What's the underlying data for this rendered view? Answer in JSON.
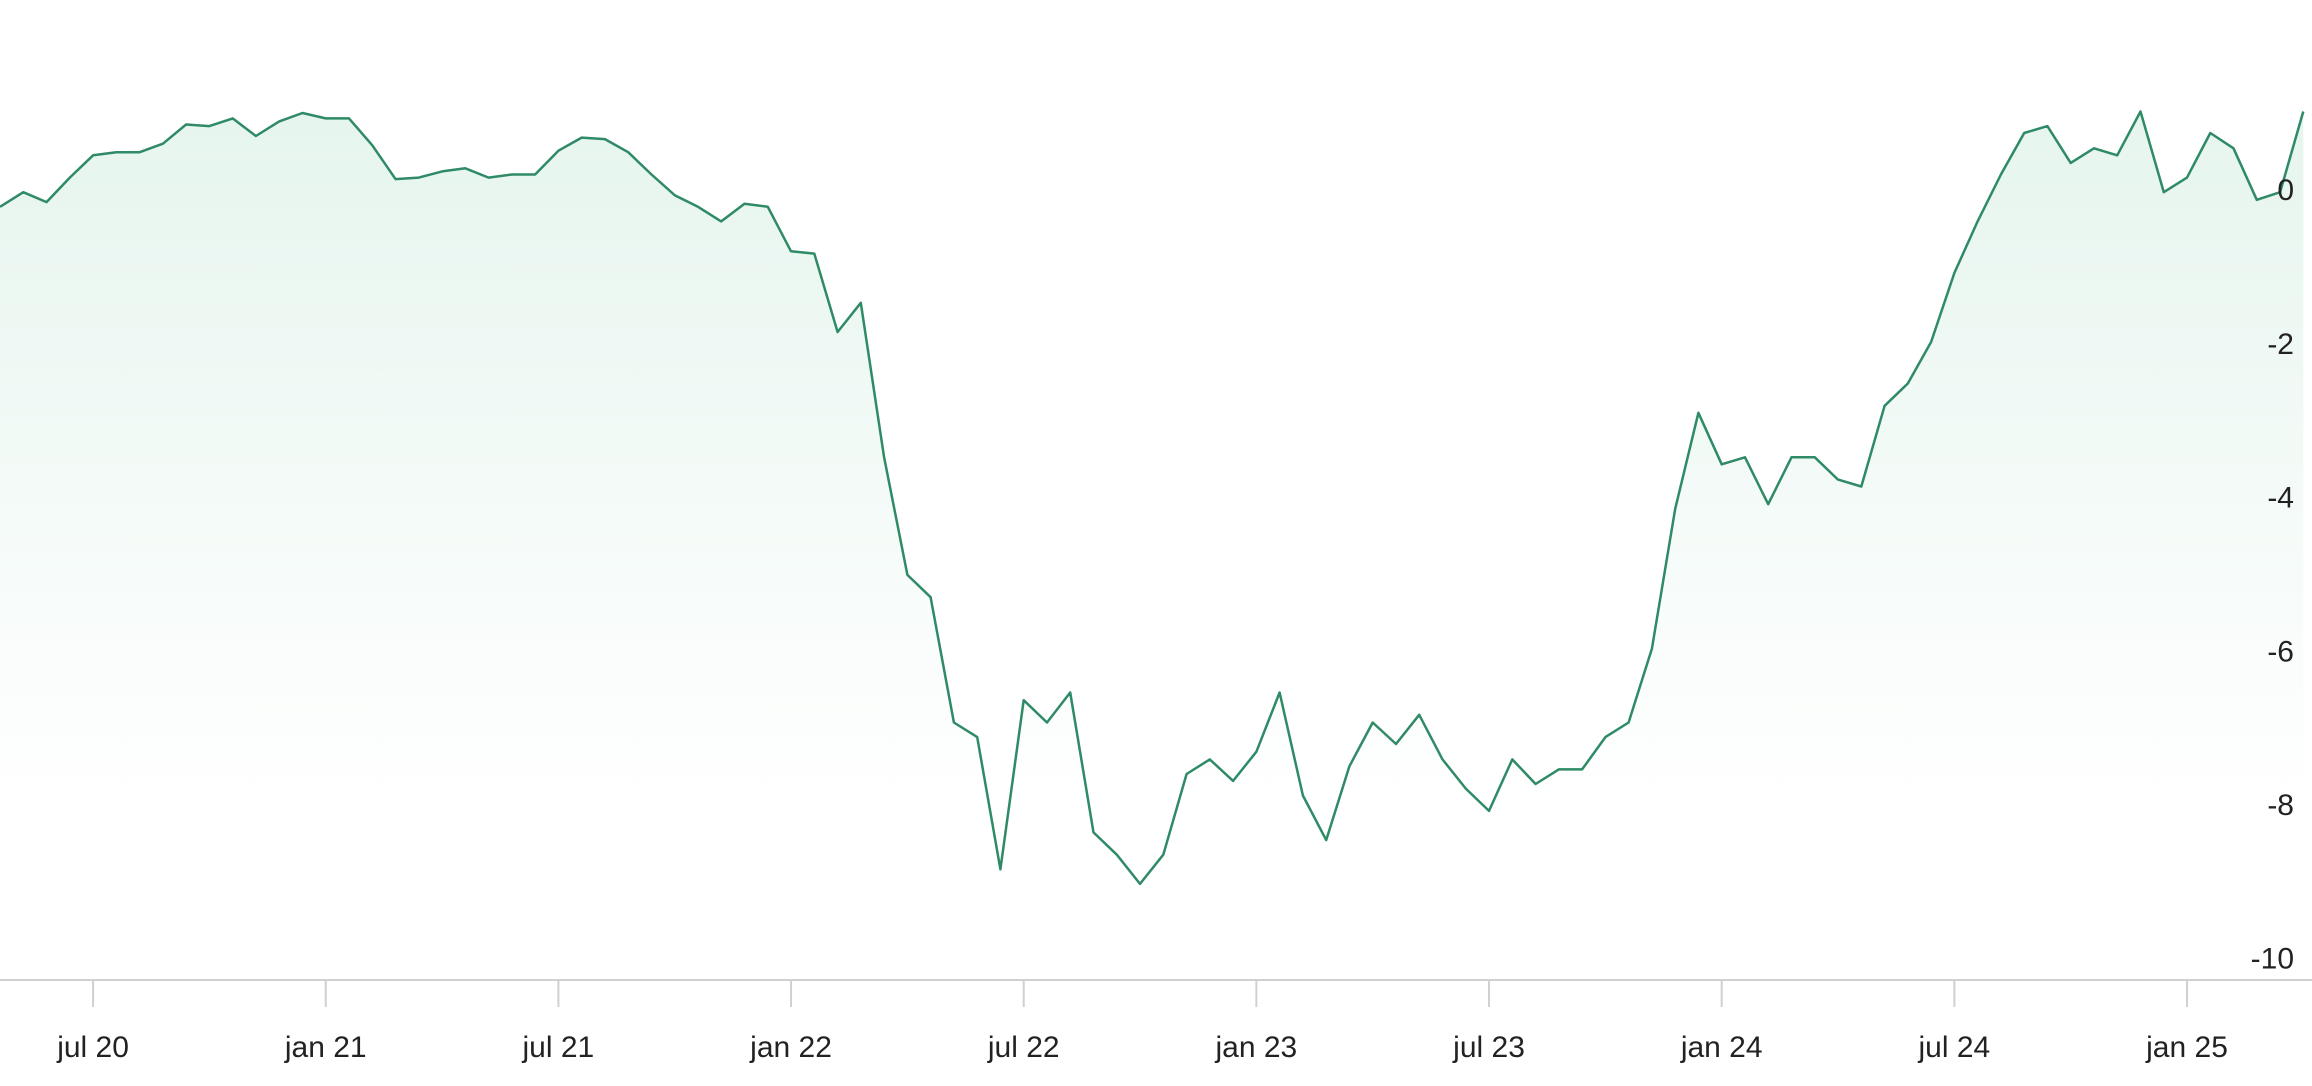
{
  "chart_data": {
    "type": "line",
    "x": [
      2020.3,
      2020.35,
      2020.4,
      2020.45,
      2020.5,
      2020.55,
      2020.6,
      2020.65,
      2020.7,
      2020.75,
      2020.8,
      2020.85,
      2020.9,
      2020.95,
      2021.0,
      2021.05,
      2021.1,
      2021.15,
      2021.2,
      2021.25,
      2021.3,
      2021.35,
      2021.4,
      2021.45,
      2021.5,
      2021.55,
      2021.6,
      2021.65,
      2021.7,
      2021.75,
      2021.8,
      2021.85,
      2021.9,
      2021.95,
      2022.0,
      2022.05,
      2022.1,
      2022.15,
      2022.2,
      2022.25,
      2022.3,
      2022.35,
      2022.4,
      2022.45,
      2022.5,
      2022.55,
      2022.6,
      2022.65,
      2022.7,
      2022.75,
      2022.8,
      2022.85,
      2022.9,
      2022.95,
      2023.0,
      2023.05,
      2023.1,
      2023.15,
      2023.2,
      2023.25,
      2023.3,
      2023.35,
      2023.4,
      2023.45,
      2023.5,
      2023.55,
      2023.6,
      2023.65,
      2023.7,
      2023.75,
      2023.8,
      2023.85,
      2023.9,
      2023.95,
      2024.0,
      2024.05,
      2024.1,
      2024.15,
      2024.2,
      2024.25,
      2024.3,
      2024.35,
      2024.4,
      2024.45,
      2024.5,
      2024.55,
      2024.6,
      2024.65,
      2024.7,
      2024.75,
      2024.8,
      2024.85,
      2024.9,
      2024.95,
      2025.0,
      2025.05,
      2025.1,
      2025.15,
      2025.2,
      2025.25
    ],
    "series": [
      {
        "color": "#2f8a66",
        "values": [
          -0.19,
          0.0,
          -0.13,
          0.19,
          0.48,
          0.52,
          0.52,
          0.63,
          0.88,
          0.86,
          0.96,
          0.73,
          0.92,
          1.03,
          0.96,
          0.96,
          0.61,
          0.17,
          0.19,
          0.27,
          0.31,
          0.19,
          0.23,
          0.23,
          0.54,
          0.71,
          0.69,
          0.52,
          0.23,
          -0.04,
          -0.19,
          -0.38,
          -0.15,
          -0.19,
          -0.77,
          -0.8,
          -1.82,
          -1.44,
          -3.45,
          -4.98,
          -5.27,
          -6.9,
          -7.09,
          -8.81,
          -6.61,
          -6.9,
          -6.51,
          -8.33,
          -8.62,
          -9.0,
          -8.62,
          -7.57,
          -7.38,
          -7.66,
          -7.28,
          -6.51,
          -7.85,
          -8.43,
          -7.47,
          -6.9,
          -7.18,
          -6.8,
          -7.38,
          -7.76,
          -8.05,
          -7.38,
          -7.7,
          -7.51,
          -7.51,
          -7.09,
          -6.9,
          -5.94,
          -4.12,
          -2.87,
          -3.54,
          -3.45,
          -4.06,
          -3.45,
          -3.45,
          -3.74,
          -3.83,
          -2.78,
          -2.49,
          -1.95,
          -1.05,
          -0.38,
          0.23,
          0.77,
          0.86,
          0.38,
          0.57,
          0.48,
          1.05,
          0.0,
          0.19,
          0.77,
          0.57,
          -0.1,
          0.0,
          1.05
        ]
      }
    ],
    "xlim": [
      2020.3,
      2025.26
    ],
    "xticks": [
      {
        "value": 2020.5,
        "label": "jul 20"
      },
      {
        "value": 2021.0,
        "label": "jan 21"
      },
      {
        "value": 2021.5,
        "label": "jul 21"
      },
      {
        "value": 2022.0,
        "label": "jan 22"
      },
      {
        "value": 2022.5,
        "label": "jul 22"
      },
      {
        "value": 2023.0,
        "label": "jan 23"
      },
      {
        "value": 2023.5,
        "label": "jul 23"
      },
      {
        "value": 2024.0,
        "label": "jan 24"
      },
      {
        "value": 2024.5,
        "label": "jul 24"
      },
      {
        "value": 2025.0,
        "label": "jan 25"
      }
    ],
    "ylim": [
      -10.25,
      2.5
    ],
    "yticks": [
      0,
      -2,
      -4,
      -6,
      -8,
      -10
    ],
    "area": true
  }
}
